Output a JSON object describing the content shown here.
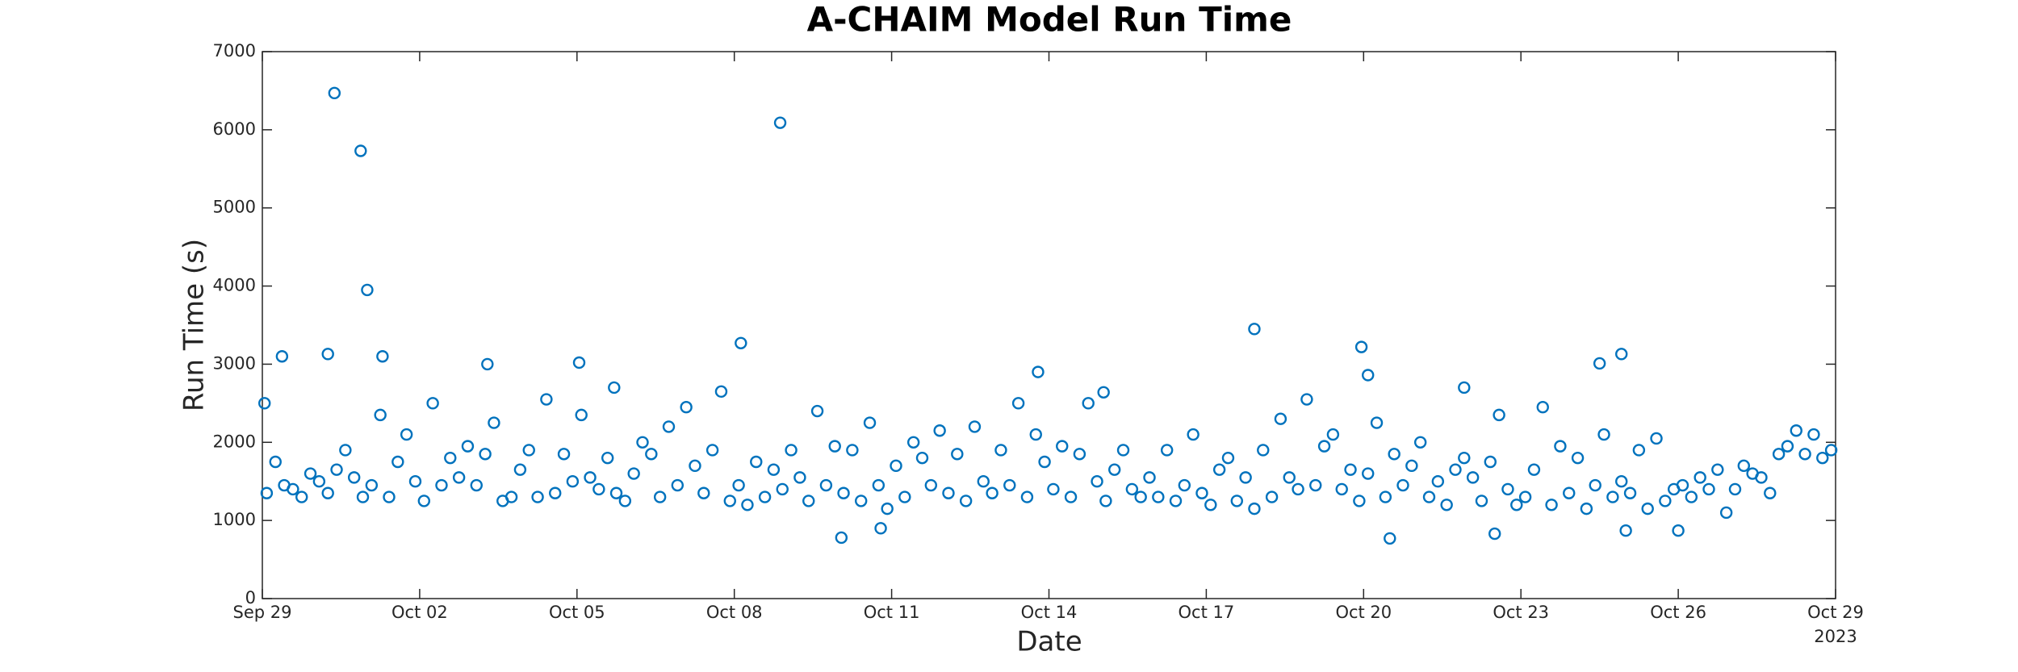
{
  "chart_data": {
    "type": "scatter",
    "title": "A-CHAIM Model Run Time",
    "x_label": "Date",
    "y_label": "Run Time (s)",
    "x_year_label": "2023",
    "xlim": [
      "2023-09-29 00:00",
      "2023-10-29 00:00"
    ],
    "xticks": [
      {
        "value": "2023-09-29 00:00",
        "label": "Sep 29"
      },
      {
        "value": "2023-10-02 00:00",
        "label": "Oct 02"
      },
      {
        "value": "2023-10-05 00:00",
        "label": "Oct 05"
      },
      {
        "value": "2023-10-08 00:00",
        "label": "Oct 08"
      },
      {
        "value": "2023-10-11 00:00",
        "label": "Oct 11"
      },
      {
        "value": "2023-10-14 00:00",
        "label": "Oct 14"
      },
      {
        "value": "2023-10-17 00:00",
        "label": "Oct 17"
      },
      {
        "value": "2023-10-20 00:00",
        "label": "Oct 20"
      },
      {
        "value": "2023-10-23 00:00",
        "label": "Oct 23"
      },
      {
        "value": "2023-10-26 00:00",
        "label": "Oct 26"
      },
      {
        "value": "2023-10-29 00:00",
        "label": "Oct 29"
      }
    ],
    "ylim": [
      0,
      7000
    ],
    "yticks": [
      0,
      1000,
      2000,
      3000,
      4000,
      5000,
      6000,
      7000
    ],
    "grid": false,
    "series": [
      {
        "name": "Run Time",
        "color": "#0072BD",
        "x": [
          "2023-09-29 02:00",
          "2023-09-29 06:00",
          "2023-09-29 10:00",
          "2023-09-29 14:00",
          "2023-09-29 18:00",
          "2023-09-29 22:00",
          "2023-09-30 02:00",
          "2023-09-30 06:00",
          "2023-09-30 10:00",
          "2023-09-30 14:00",
          "2023-09-30 18:00",
          "2023-09-30 22:00",
          "2023-10-01 02:00",
          "2023-10-01 06:00",
          "2023-10-01 10:00",
          "2023-10-01 14:00",
          "2023-10-01 18:00",
          "2023-10-01 22:00",
          "2023-10-02 02:00",
          "2023-10-02 06:00",
          "2023-10-02 10:00",
          "2023-10-02 14:00",
          "2023-10-02 18:00",
          "2023-10-02 22:00",
          "2023-10-03 02:00",
          "2023-10-03 06:00",
          "2023-10-03 10:00",
          "2023-10-03 14:00",
          "2023-10-03 18:00",
          "2023-10-03 22:00",
          "2023-10-04 02:00",
          "2023-10-04 06:00",
          "2023-10-04 10:00",
          "2023-10-04 14:00",
          "2023-10-04 18:00",
          "2023-10-04 22:00",
          "2023-10-05 02:00",
          "2023-10-05 06:00",
          "2023-10-05 10:00",
          "2023-10-05 14:00",
          "2023-10-05 18:00",
          "2023-10-05 22:00",
          "2023-10-06 02:00",
          "2023-10-06 06:00",
          "2023-10-06 10:00",
          "2023-10-06 14:00",
          "2023-10-06 18:00",
          "2023-10-06 22:00",
          "2023-10-07 02:00",
          "2023-10-07 06:00",
          "2023-10-07 10:00",
          "2023-10-07 14:00",
          "2023-10-07 18:00",
          "2023-10-07 22:00",
          "2023-10-08 02:00",
          "2023-10-08 06:00",
          "2023-10-08 10:00",
          "2023-10-08 14:00",
          "2023-10-08 18:00",
          "2023-10-08 22:00",
          "2023-10-09 02:00",
          "2023-10-09 06:00",
          "2023-10-09 10:00",
          "2023-10-09 14:00",
          "2023-10-09 18:00",
          "2023-10-09 22:00",
          "2023-10-10 02:00",
          "2023-10-10 06:00",
          "2023-10-10 10:00",
          "2023-10-10 14:00",
          "2023-10-10 18:00",
          "2023-10-10 22:00",
          "2023-10-11 02:00",
          "2023-10-11 06:00",
          "2023-10-11 10:00",
          "2023-10-11 14:00",
          "2023-10-11 18:00",
          "2023-10-11 22:00",
          "2023-10-12 02:00",
          "2023-10-12 06:00",
          "2023-10-12 10:00",
          "2023-10-12 14:00",
          "2023-10-12 18:00",
          "2023-10-12 22:00",
          "2023-10-13 02:00",
          "2023-10-13 06:00",
          "2023-10-13 10:00",
          "2023-10-13 14:00",
          "2023-10-13 18:00",
          "2023-10-13 22:00",
          "2023-10-14 02:00",
          "2023-10-14 06:00",
          "2023-10-14 10:00",
          "2023-10-14 14:00",
          "2023-10-14 18:00",
          "2023-10-14 22:00",
          "2023-10-15 02:00",
          "2023-10-15 06:00",
          "2023-10-15 10:00",
          "2023-10-15 14:00",
          "2023-10-15 18:00",
          "2023-10-15 22:00",
          "2023-10-16 02:00",
          "2023-10-16 06:00",
          "2023-10-16 10:00",
          "2023-10-16 14:00",
          "2023-10-16 18:00",
          "2023-10-16 22:00",
          "2023-10-17 02:00",
          "2023-10-17 06:00",
          "2023-10-17 10:00",
          "2023-10-17 14:00",
          "2023-10-17 18:00",
          "2023-10-17 22:00",
          "2023-10-18 02:00",
          "2023-10-18 06:00",
          "2023-10-18 10:00",
          "2023-10-18 14:00",
          "2023-10-18 18:00",
          "2023-10-18 22:00",
          "2023-10-19 02:00",
          "2023-10-19 06:00",
          "2023-10-19 10:00",
          "2023-10-19 14:00",
          "2023-10-19 18:00",
          "2023-10-19 22:00",
          "2023-10-20 02:00",
          "2023-10-20 06:00",
          "2023-10-20 10:00",
          "2023-10-20 14:00",
          "2023-10-20 18:00",
          "2023-10-20 22:00",
          "2023-10-21 02:00",
          "2023-10-21 06:00",
          "2023-10-21 10:00",
          "2023-10-21 14:00",
          "2023-10-21 18:00",
          "2023-10-21 22:00",
          "2023-10-22 02:00",
          "2023-10-22 06:00",
          "2023-10-22 10:00",
          "2023-10-22 14:00",
          "2023-10-22 18:00",
          "2023-10-22 22:00",
          "2023-10-23 02:00",
          "2023-10-23 06:00",
          "2023-10-23 10:00",
          "2023-10-23 14:00",
          "2023-10-23 18:00",
          "2023-10-23 22:00",
          "2023-10-24 02:00",
          "2023-10-24 06:00",
          "2023-10-24 10:00",
          "2023-10-24 14:00",
          "2023-10-24 18:00",
          "2023-10-24 22:00",
          "2023-10-25 02:00",
          "2023-10-25 06:00",
          "2023-10-25 10:00",
          "2023-10-25 14:00",
          "2023-10-25 18:00",
          "2023-10-25 22:00",
          "2023-10-26 02:00",
          "2023-10-26 06:00",
          "2023-10-26 10:00",
          "2023-10-26 14:00",
          "2023-10-26 18:00",
          "2023-10-26 22:00",
          "2023-10-27 02:00",
          "2023-10-27 06:00",
          "2023-10-27 10:00",
          "2023-10-27 14:00",
          "2023-10-27 18:00",
          "2023-10-27 22:00",
          "2023-10-28 02:00",
          "2023-10-28 06:00",
          "2023-10-28 10:00",
          "2023-10-28 14:00",
          "2023-10-28 18:00",
          "2023-10-28 22:00",
          "2023-09-29 01:00",
          "2023-09-29 09:00",
          "2023-09-30 06:00",
          "2023-09-30 09:00",
          "2023-09-30 21:00",
          "2023-10-01 00:00",
          "2023-10-01 07:00",
          "2023-10-03 07:00",
          "2023-10-05 01:00",
          "2023-10-05 17:00",
          "2023-10-08 03:00",
          "2023-10-08 21:00",
          "2023-10-10 01:00",
          "2023-10-10 19:00",
          "2023-10-13 19:00",
          "2023-10-15 01:00",
          "2023-10-17 22:00",
          "2023-10-19 23:00",
          "2023-10-20 02:00",
          "2023-10-20 12:00",
          "2023-10-21 22:00",
          "2023-10-22 12:00",
          "2023-10-24 12:00",
          "2023-10-24 22:00",
          "2023-10-25 00:00",
          "2023-10-26 00:00"
        ],
        "values": [
          1350,
          1750,
          1450,
          1400,
          1300,
          1600,
          1500,
          1350,
          1650,
          1900,
          1550,
          1300,
          1450,
          2350,
          1300,
          1750,
          2100,
          1500,
          1250,
          2500,
          1450,
          1800,
          1550,
          1950,
          1450,
          1850,
          2250,
          1250,
          1300,
          1650,
          1900,
          1300,
          2550,
          1350,
          1850,
          1500,
          2350,
          1550,
          1400,
          1800,
          1350,
          1250,
          1600,
          2000,
          1850,
          1300,
          2200,
          1450,
          2450,
          1700,
          1350,
          1900,
          2650,
          1250,
          1450,
          1200,
          1750,
          1300,
          1650,
          1400,
          1900,
          1550,
          1250,
          2400,
          1450,
          1950,
          1350,
          1900,
          1250,
          2250,
          1450,
          1150,
          1700,
          1300,
          2000,
          1800,
          1450,
          2150,
          1350,
          1850,
          1250,
          2200,
          1500,
          1350,
          1900,
          1450,
          2500,
          1300,
          2100,
          1750,
          1400,
          1950,
          1300,
          1850,
          2500,
          1500,
          1250,
          1650,
          1900,
          1400,
          1300,
          1550,
          1300,
          1900,
          1250,
          1450,
          2100,
          1350,
          1200,
          1650,
          1800,
          1250,
          1550,
          1150,
          1900,
          1300,
          2300,
          1550,
          1400,
          2550,
          1450,
          1950,
          2100,
          1400,
          1650,
          1250,
          1600,
          2250,
          1300,
          1850,
          1450,
          1700,
          2000,
          1300,
          1500,
          1200,
          1650,
          1800,
          1550,
          1250,
          1750,
          2350,
          1400,
          1200,
          1300,
          1650,
          2450,
          1200,
          1950,
          1350,
          1800,
          1150,
          1450,
          2100,
          1300,
          1500,
          1350,
          1900,
          1150,
          2050,
          1250,
          1400,
          1450,
          1300,
          1550,
          1400,
          1650,
          1100,
          1400,
          1700,
          1600,
          1550,
          1350,
          1850,
          1950,
          2150,
          1850,
          2100,
          1800,
          1900,
          2500,
          3100,
          3130,
          6470,
          5730,
          3950,
          3100,
          3000,
          3020,
          2700,
          3270,
          6090,
          780,
          900,
          2900,
          2640,
          3450,
          3220,
          2860,
          770,
          2700,
          830,
          3010,
          3130,
          870,
          870
        ]
      }
    ]
  }
}
